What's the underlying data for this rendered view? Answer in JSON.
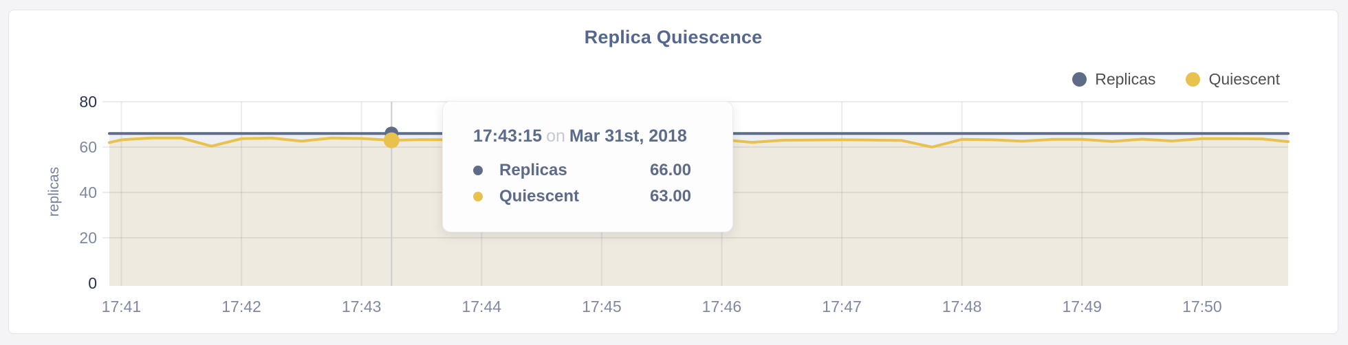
{
  "card": {
    "background": "#ffffff",
    "border_color": "#e4e4e7"
  },
  "chart": {
    "title": "Replica Quiescence",
    "y_axis_label": "replicas",
    "legend": [
      {
        "label": "Replicas",
        "color": "#5e6c88"
      },
      {
        "label": "Quiescent",
        "color": "#e9c24e"
      }
    ]
  },
  "tooltip": {
    "time": "17:43:15",
    "connector": "on",
    "date": "Mar 31st, 2018",
    "rows": [
      {
        "label": "Replicas",
        "value": "66.00",
        "color": "#5e6c88"
      },
      {
        "label": "Quiescent",
        "value": "63.00",
        "color": "#e9c24e"
      }
    ]
  },
  "chart_data": {
    "type": "area",
    "title": "Replica Quiescence",
    "ylabel": "replicas",
    "ylim": [
      0,
      80
    ],
    "y_ticks": [
      0,
      20,
      40,
      60,
      80
    ],
    "x_start": "17:40:54",
    "x_end": "17:50:43",
    "x_ticks": [
      "17:41",
      "17:42",
      "17:43",
      "17:44",
      "17:45",
      "17:46",
      "17:47",
      "17:48",
      "17:49",
      "17:50"
    ],
    "grid": true,
    "legend_position": "top-right",
    "colors": {
      "axis_tick": "#7e89a1",
      "axis_tick_extreme": "#26334f",
      "grid": "rgba(115,110,90,0.13)",
      "crosshair": "#cccccc",
      "replicas_fill": "#edeff4",
      "quiescent_fill": "#eeeae0"
    },
    "series": [
      {
        "name": "Replicas",
        "color": "#5e6c88",
        "fill": "#edeff4",
        "stroke_width": 4,
        "values": [
          {
            "t": "17:40:54",
            "v": 66
          },
          {
            "t": "17:50:43",
            "v": 66
          }
        ]
      },
      {
        "name": "Quiescent",
        "color": "#e9c24e",
        "fill": "#eeeae0",
        "stroke_width": 4,
        "values": [
          {
            "t": "17:40:54",
            "v": 62.0
          },
          {
            "t": "17:41:00",
            "v": 63.2
          },
          {
            "t": "17:41:15",
            "v": 64.0
          },
          {
            "t": "17:41:30",
            "v": 64.0
          },
          {
            "t": "17:41:45",
            "v": 60.4
          },
          {
            "t": "17:42:00",
            "v": 63.7
          },
          {
            "t": "17:42:15",
            "v": 64.0
          },
          {
            "t": "17:42:30",
            "v": 62.6
          },
          {
            "t": "17:42:45",
            "v": 64.0
          },
          {
            "t": "17:43:00",
            "v": 63.8
          },
          {
            "t": "17:43:15",
            "v": 63.0
          },
          {
            "t": "17:43:30",
            "v": 63.3
          },
          {
            "t": "17:43:45",
            "v": 63.2
          },
          {
            "t": "17:44:00",
            "v": 63.4
          },
          {
            "t": "17:44:15",
            "v": 63.1
          },
          {
            "t": "17:44:30",
            "v": 63.3
          },
          {
            "t": "17:44:45",
            "v": 63.2
          },
          {
            "t": "17:45:00",
            "v": 63.4
          },
          {
            "t": "17:45:15",
            "v": 63.2
          },
          {
            "t": "17:45:30",
            "v": 63.3
          },
          {
            "t": "17:45:45",
            "v": 63.4
          },
          {
            "t": "17:46:00",
            "v": 63.3
          },
          {
            "t": "17:46:15",
            "v": 62.1
          },
          {
            "t": "17:46:30",
            "v": 63.0
          },
          {
            "t": "17:46:45",
            "v": 63.1
          },
          {
            "t": "17:47:00",
            "v": 63.2
          },
          {
            "t": "17:47:15",
            "v": 63.1
          },
          {
            "t": "17:47:30",
            "v": 62.9
          },
          {
            "t": "17:47:45",
            "v": 60.0
          },
          {
            "t": "17:48:00",
            "v": 63.4
          },
          {
            "t": "17:48:15",
            "v": 63.2
          },
          {
            "t": "17:48:30",
            "v": 62.6
          },
          {
            "t": "17:48:45",
            "v": 63.4
          },
          {
            "t": "17:49:00",
            "v": 63.4
          },
          {
            "t": "17:49:15",
            "v": 62.5
          },
          {
            "t": "17:49:30",
            "v": 63.5
          },
          {
            "t": "17:49:45",
            "v": 62.7
          },
          {
            "t": "17:50:00",
            "v": 63.7
          },
          {
            "t": "17:50:15",
            "v": 63.7
          },
          {
            "t": "17:50:30",
            "v": 63.6
          },
          {
            "t": "17:50:43",
            "v": 62.4
          }
        ]
      }
    ],
    "hover": {
      "t": "17:43:15",
      "points": [
        {
          "name": "Replicas",
          "v": 66,
          "color": "#5e6c88",
          "r": 10
        },
        {
          "name": "Quiescent",
          "v": 63,
          "color": "#e9c24e",
          "r": 11.5
        }
      ]
    }
  }
}
